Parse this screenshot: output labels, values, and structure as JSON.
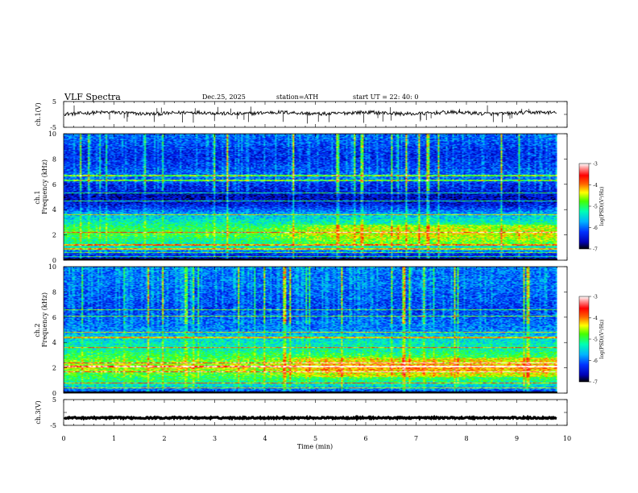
{
  "header": {
    "title": "VLF  Spectra",
    "date": "Dec.25, 2025",
    "station": "station=ATH",
    "start": "start  UT  =    22: 40: 0"
  },
  "colors": {
    "colormap": [
      "#000000",
      "#0000b4",
      "#0032ff",
      "#00b4ff",
      "#00ffb4",
      "#46ff00",
      "#ffff00",
      "#ff6400",
      "#ff0000",
      "#ff8c8c",
      "#ffffff"
    ],
    "trace": "#000000",
    "noise_hi": "#ff2020"
  },
  "chart_data": [
    {
      "type": "line",
      "name": "ch1-waveform",
      "ylabel": "ch.1(V)",
      "yticks": [
        "5",
        "-5"
      ],
      "ylim": [
        -5,
        5
      ],
      "xlim": [
        0,
        10
      ],
      "data_end_min": 9.8,
      "baseline_v": 0.5
    },
    {
      "type": "heatmap",
      "name": "ch1-spectrogram",
      "ylabel": "ch.1\nFrequency  (kHz)",
      "ylabel_top": "ch.1",
      "ylabel_bottom": "Frequency  (kHz)",
      "yticks": [
        "0",
        "2",
        "4",
        "6",
        "8",
        "10"
      ],
      "ylim": [
        0,
        10
      ],
      "xlim": [
        0,
        10
      ],
      "data_end_min": 9.8,
      "profile_khz": [
        0,
        0.5,
        1,
        1.5,
        2,
        2.5,
        3,
        3.5,
        4,
        4.5,
        5,
        5.5,
        6,
        6.5,
        7,
        7.5,
        8,
        8.5,
        9,
        9.5,
        10
      ],
      "profile_logpsd": [
        -6.6,
        -6.3,
        -5.4,
        -5.2,
        -4.9,
        -5.0,
        -5.3,
        -5.6,
        -6.1,
        -6.5,
        -6.6,
        -6.4,
        -6.3,
        -6.0,
        -6.1,
        -6.2,
        -6.3,
        -6.3,
        -6.2,
        -6.1,
        -6.0
      ],
      "lines_khz": [
        0.3,
        0.6,
        0.9,
        1.2,
        2.2,
        3.6,
        4.7,
        5.3,
        6.3,
        6.7
      ],
      "colorbar": {
        "ticks": [
          "-3",
          "-4",
          "-5",
          "-6",
          "-7"
        ],
        "range": [
          -7,
          -3
        ],
        "label": "log(PSD)(V²/Hz)"
      }
    },
    {
      "type": "heatmap",
      "name": "ch2-spectrogram",
      "ylabel": "ch.2\nFrequency  (kHz)",
      "ylabel_top": "ch.2",
      "ylabel_bottom": "Frequency  (kHz)",
      "yticks": [
        "0",
        "2",
        "4",
        "6",
        "8",
        "10"
      ],
      "ylim": [
        0,
        10
      ],
      "xlim": [
        0,
        10
      ],
      "data_end_min": 9.8,
      "profile_khz": [
        0,
        0.5,
        1,
        1.5,
        2,
        2.5,
        3,
        3.5,
        4,
        4.5,
        5,
        5.5,
        6,
        6.5,
        7,
        7.5,
        8,
        8.5,
        9,
        9.5,
        10
      ],
      "profile_logpsd": [
        -6.5,
        -5.6,
        -5.1,
        -4.9,
        -4.5,
        -4.8,
        -5.0,
        -5.3,
        -5.4,
        -5.6,
        -5.9,
        -6.0,
        -6.1,
        -6.2,
        -6.2,
        -6.1,
        -6.1,
        -6.0,
        -6.0,
        -6.0,
        -5.9
      ],
      "lines_khz": [
        0.4,
        0.8,
        1.7,
        2.1,
        2.4,
        3.6,
        4.4,
        4.8,
        6.1,
        6.6
      ],
      "colorbar": {
        "ticks": [
          "-3",
          "-4",
          "-5",
          "-6",
          "-7"
        ],
        "range": [
          -7,
          -3
        ],
        "label": "log(PSD)(V²/Hz)"
      }
    },
    {
      "type": "line",
      "name": "ch3-waveform",
      "ylabel": "ch.3(V)",
      "yticks": [
        "5",
        "-5"
      ],
      "ylim": [
        -5,
        5
      ],
      "xlim": [
        0,
        10
      ],
      "data_end_min": 9.8,
      "baseline_v": -2.1
    }
  ],
  "xaxis": {
    "label": "Time  (min)",
    "ticks": [
      "0",
      "1",
      "2",
      "3",
      "4",
      "5",
      "6",
      "7",
      "8",
      "9",
      "10"
    ],
    "range": [
      0,
      10
    ]
  }
}
